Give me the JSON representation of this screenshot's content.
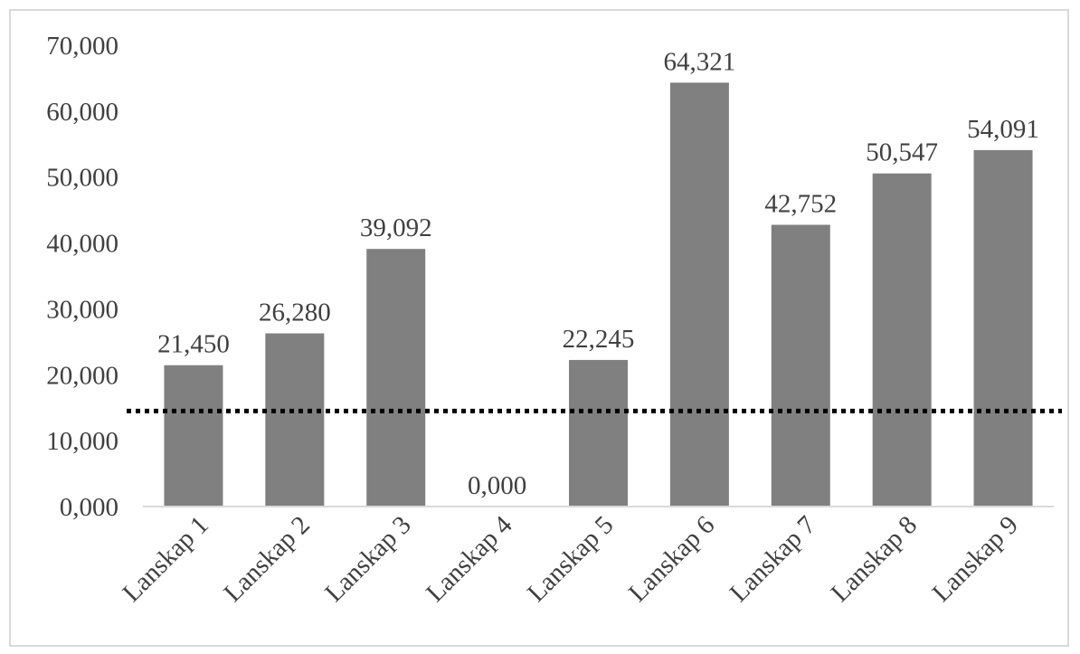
{
  "chart_data": {
    "type": "bar",
    "categories": [
      "Lanskap 1",
      "Lanskap 2",
      "Lanskap 3",
      "Lanskap 4",
      "Lanskap 5",
      "Lanskap 6",
      "Lanskap 7",
      "Lanskap 8",
      "Lanskap 9"
    ],
    "values": [
      21.45,
      26.28,
      39.092,
      0.0,
      22.245,
      64.321,
      42.752,
      50.547,
      54.091
    ],
    "data_labels": [
      "21,450",
      "26,280",
      "39,092",
      "0,000",
      "22,245",
      "64,321",
      "42,752",
      "50,547",
      "54,091"
    ],
    "y_ticks": [
      0,
      10,
      20,
      30,
      40,
      50,
      60,
      70
    ],
    "y_tick_labels": [
      "0,000",
      "10,000",
      "20,000",
      "30,000",
      "40,000",
      "50,000",
      "60,000",
      "70,000"
    ],
    "ylim": [
      0,
      70
    ],
    "reference_line": {
      "value": 14.5,
      "style": "dotted",
      "color": "#000000"
    },
    "title": "",
    "xlabel": "",
    "ylabel": "",
    "grid": false,
    "legend": "none",
    "colors": {
      "bar": "#808080",
      "axis": "#d9d9d9",
      "text": "#404040",
      "border": "#d9d9d9"
    }
  }
}
